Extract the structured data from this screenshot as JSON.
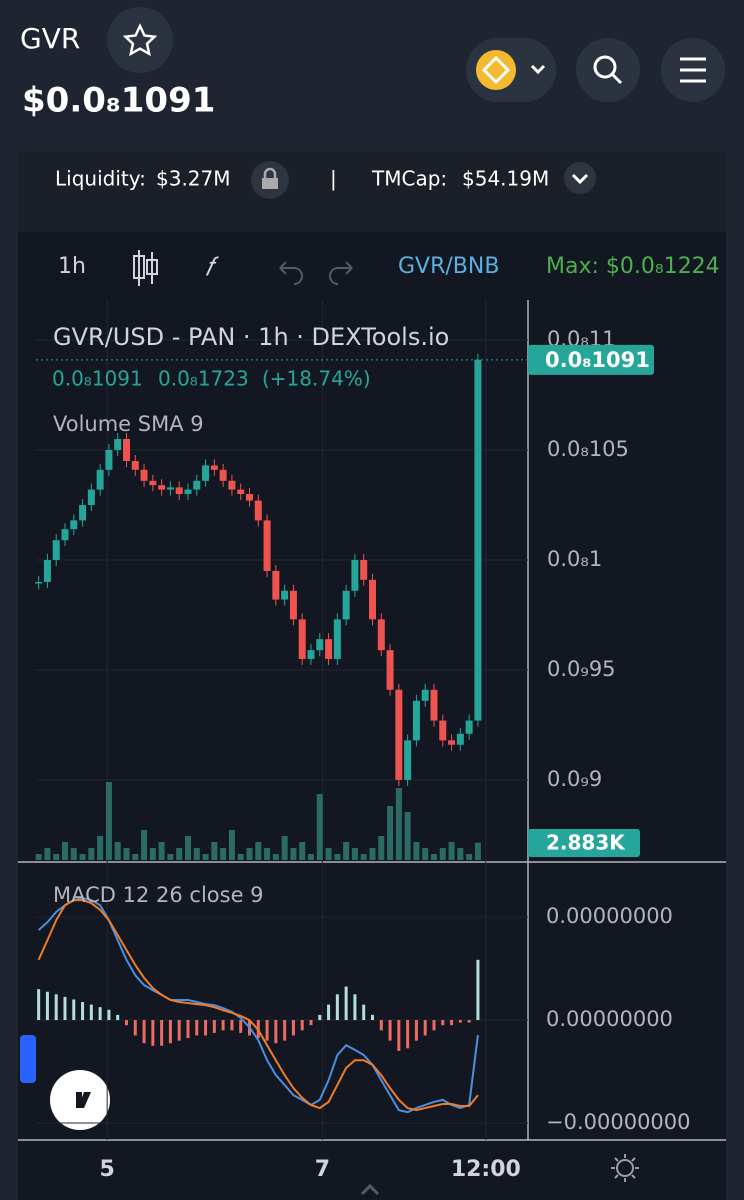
{
  "header": {
    "symbol": "GVR",
    "price": "$0.0₈1091"
  },
  "stats": {
    "liquidity_label": "Liquidity:",
    "liquidity": "$3.27M",
    "separator": "|",
    "tmcap_label": "TMCap:",
    "tmcap": "$54.19M"
  },
  "toolbar": {
    "interval": "1h",
    "pair": "GVR/BNB",
    "max": "Max: $0.0₈1224"
  },
  "chart_data": [
    {
      "type": "candlestick",
      "title": "GVR/USD - PAN · 1h · DEXTools.io",
      "legend": [
        "0.0₈1091",
        "0.0₈1723",
        "(+18.74%)"
      ],
      "values": [
        9.9e-10,
        1e-09,
        1.009e-09,
        1.014e-09,
        1.018e-09,
        1.025e-09,
        1.032e-09,
        1.041e-09,
        1.05e-09,
        1.055e-09,
        1.045e-09,
        1.041e-09,
        1.036e-09,
        1.034e-09,
        1.032e-09,
        1.033e-09,
        1.03e-09,
        1.032e-09,
        1.036e-09,
        1.043e-09,
        1.041e-09,
        1.036e-09,
        1.032e-09,
        1.03e-09,
        1.027e-09,
        1.018e-09,
        9.95e-10,
        9.82e-10,
        9.86e-10,
        9.73e-10,
        9.55e-10,
        9.59e-10,
        9.64e-10,
        9.55e-10,
        9.73e-10,
        9.86e-10,
        1e-09,
        9.91e-10,
        9.73e-10,
        9.59e-10,
        9.41e-10,
        9e-10,
        9.18e-10,
        9.36e-10,
        9.41e-10,
        9.27e-10,
        9.18e-10,
        9.16e-10,
        9.21e-10,
        9.27e-10,
        1.091e-09
      ],
      "value_labels": [
        null,
        null,
        null,
        null,
        null,
        null,
        null,
        null,
        null,
        null,
        null,
        null,
        null,
        null,
        null,
        null,
        null,
        null,
        null,
        null,
        null,
        null,
        null,
        null,
        null,
        null,
        null,
        null,
        null,
        null,
        null,
        null,
        null,
        null,
        null,
        null,
        null,
        null,
        null,
        null,
        null,
        null,
        null,
        null,
        null,
        null,
        null,
        null,
        null,
        null,
        "0.0₈1091"
      ],
      "up_color": "#26a69a",
      "down_color": "#ef5350",
      "volume": {
        "name": "Volume SMA 9",
        "color": "#2a6b63",
        "values": [
          1,
          2,
          1,
          3,
          2,
          1,
          2,
          4,
          13,
          3,
          2,
          1,
          5,
          2,
          3,
          1,
          2,
          4,
          2,
          1,
          3,
          2,
          5,
          1,
          2,
          3,
          2,
          1,
          4,
          2,
          3,
          1,
          11,
          2,
          1,
          3,
          2,
          1,
          2,
          4,
          9,
          12,
          8,
          3,
          2,
          1,
          2,
          3,
          2,
          1,
          2.883
        ],
        "value_labels": [
          null,
          null,
          null,
          null,
          null,
          null,
          null,
          null,
          null,
          null,
          null,
          null,
          null,
          null,
          null,
          null,
          null,
          null,
          null,
          null,
          null,
          null,
          null,
          null,
          null,
          null,
          null,
          null,
          null,
          null,
          null,
          null,
          null,
          null,
          null,
          null,
          null,
          null,
          null,
          null,
          null,
          null,
          null,
          null,
          null,
          null,
          null,
          null,
          null,
          null,
          "2.883K"
        ]
      },
      "xlim": [
        -0.3,
        55.7
      ],
      "xticks": [
        {
          "value": 7.8,
          "label": "5"
        },
        {
          "value": 32.3,
          "label": "7"
        },
        {
          "value": 50.9,
          "label": "12:00"
        }
      ],
      "ylim": [
        8.636e-10,
        1.1182e-09
      ],
      "yticks": [
        {
          "value": 1.1e-09,
          "label": "0.0₈11"
        },
        {
          "value": 1.05e-09,
          "label": "0.0₈105"
        },
        {
          "value": 1e-09,
          "label": "0.0₈1"
        },
        {
          "value": 9.5e-10,
          "label": "0.0₉95"
        },
        {
          "value": 9e-10,
          "label": "0.0₉9"
        }
      ],
      "grid": true
    },
    {
      "type": "macd",
      "title": "MACD 12 26 close 9",
      "series": [
        {
          "color": "#4a90e2",
          "values": [
            1.75e-11,
            1.9e-11,
            2.1e-11,
            2.23e-11,
            2.33e-11,
            2.37e-11,
            2.33e-11,
            2.23e-11,
            1.94e-11,
            1.55e-11,
            1.17e-11,
            8.7e-12,
            6.8e-12,
            5.8e-12,
            4.9e-12,
            3.9e-12,
            3.9e-12,
            3.9e-12,
            3.5e-12,
            3.1e-12,
            2.9e-12,
            2.3e-12,
            1.6e-12,
            4e-13,
            -1.4e-12,
            -3.9e-12,
            -7.8e-12,
            -1.07e-11,
            -1.26e-11,
            -1.46e-11,
            -1.55e-11,
            -1.65e-11,
            -1.55e-11,
            -1.17e-11,
            -6.8e-12,
            -4.9e-12,
            -5.8e-12,
            -6.8e-12,
            -8.7e-12,
            -1.17e-11,
            -1.46e-11,
            -1.75e-11,
            -1.79e-11,
            -1.71e-11,
            -1.65e-11,
            -1.59e-11,
            -1.55e-11,
            -1.65e-11,
            -1.71e-11,
            -1.65e-11,
            -2.9e-12
          ]
        },
        {
          "color": "#f07c2a",
          "values": [
            1.17e-11,
            1.55e-11,
            1.94e-11,
            2.23e-11,
            2.33e-11,
            2.33e-11,
            2.27e-11,
            2.14e-11,
            1.94e-11,
            1.65e-11,
            1.36e-11,
            1.07e-11,
            8.2e-12,
            6.2e-12,
            4.9e-12,
            3.9e-12,
            3.5e-12,
            3.3e-12,
            3.1e-12,
            2.9e-12,
            2.5e-12,
            1.9e-12,
            1.4e-12,
            8e-13,
            0,
            -1.9e-12,
            -4.9e-12,
            -7.8e-12,
            -1.07e-11,
            -1.32e-11,
            -1.51e-11,
            -1.65e-11,
            -1.71e-11,
            -1.59e-11,
            -1.26e-11,
            -9.3e-12,
            -7.8e-12,
            -7.8e-12,
            -8.7e-12,
            -1.07e-11,
            -1.32e-11,
            -1.55e-11,
            -1.71e-11,
            -1.75e-11,
            -1.71e-11,
            -1.67e-11,
            -1.63e-11,
            -1.63e-11,
            -1.67e-11,
            -1.67e-11,
            -1.46e-11
          ]
        }
      ],
      "histogram": {
        "up_color": "#b2dfdb",
        "down_color": "#ef6b62",
        "values": [
          6e-12,
          5.5e-12,
          5e-12,
          4.5e-12,
          4e-12,
          3.5e-12,
          3e-12,
          2.5e-12,
          2e-12,
          1e-12,
          -1e-12,
          -3e-12,
          -4.5e-12,
          -5e-12,
          -5e-12,
          -4.5e-12,
          -4e-12,
          -3.5e-12,
          -3e-12,
          -3e-12,
          -2.5e-12,
          -2e-12,
          -2e-12,
          -2.5e-12,
          -3e-12,
          -3.5e-12,
          -4e-12,
          -4.5e-12,
          -4e-12,
          -3e-12,
          -2e-12,
          -1e-12,
          1e-12,
          3e-12,
          5e-12,
          6.5e-12,
          5e-12,
          3e-12,
          1e-12,
          -2e-12,
          -4e-12,
          -6e-12,
          -5.5e-12,
          -4e-12,
          -3e-12,
          -2e-12,
          -1e-12,
          -1e-12,
          -5e-13,
          -5e-13,
          1.17e-11
        ]
      },
      "ylim": [
        -2.33e-11,
        3.07e-11
      ],
      "yticks": [
        {
          "value": 2e-11,
          "label": "0.00000000"
        },
        {
          "value": 0,
          "label": "0.00000000"
        },
        {
          "value": -2e-11,
          "label": "−0.00000000"
        }
      ]
    }
  ]
}
